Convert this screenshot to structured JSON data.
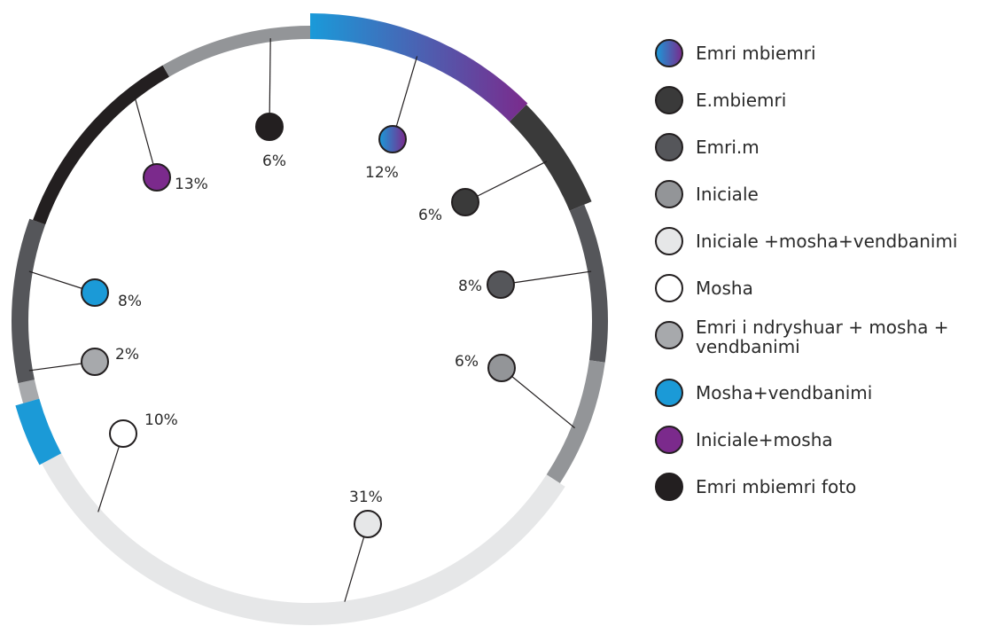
{
  "chart_data": {
    "type": "pie",
    "variant": "donut-ring",
    "series": [
      {
        "name": "Emri mbiemri",
        "value": 12,
        "label": "12%",
        "color": "gradient:#1a9ad9-#7b2a8c"
      },
      {
        "name": "E.mbiemri",
        "value": 6,
        "label": "6%",
        "color": "#3a3a3a"
      },
      {
        "name": "Emri.m",
        "value": 8,
        "label": "8%",
        "color": "#55565a"
      },
      {
        "name": "Iniciale",
        "value": 6,
        "label": "6%",
        "color": "#939598"
      },
      {
        "name": "Iniciale +mosha+vendbanimi",
        "value": 31,
        "label": "31%",
        "color": "#e6e7e8"
      },
      {
        "name": "Mosha",
        "value": 10,
        "label": "10%",
        "color": "#ffffff"
      },
      {
        "name": "Emri i ndryshuar + mosha + vendbanimi",
        "value": 2,
        "label": "2%",
        "color": "#a7a9ac"
      },
      {
        "name": "Mosha+vendbanimi",
        "value": 8,
        "label": "8%",
        "color": "#1b9ad7"
      },
      {
        "name": "Iniciale+mosha",
        "value": 13,
        "label": "13%",
        "color": "#7b2a8c"
      },
      {
        "name": "Emri mbiemri foto",
        "value": 6,
        "label": "6%",
        "color": "#231f20"
      }
    ],
    "legend_position": "right",
    "legend": [
      {
        "label": "Emri mbiemri",
        "color": "gradient:#1a9ad9-#7b2a8c"
      },
      {
        "label": "E.mbiemri",
        "color": "#3a3a3a"
      },
      {
        "label": "Emri.m",
        "color": "#55565a"
      },
      {
        "label": "Iniciale",
        "color": "#939598"
      },
      {
        "label": "Iniciale +mosha+vendbanimi",
        "color": "#e6e7e8"
      },
      {
        "label": "Mosha",
        "color": "#ffffff"
      },
      {
        "label": "Emri i ndryshuar + mosha + vendbanimi",
        "color": "#a7a9ac"
      },
      {
        "label": "Mosha+vendbanimi",
        "color": "#1b9ad7"
      },
      {
        "label": "Iniciale+mosha",
        "color": "#7b2a8c"
      },
      {
        "label": "Emri mbiemri foto",
        "color": "#231f20"
      }
    ]
  }
}
